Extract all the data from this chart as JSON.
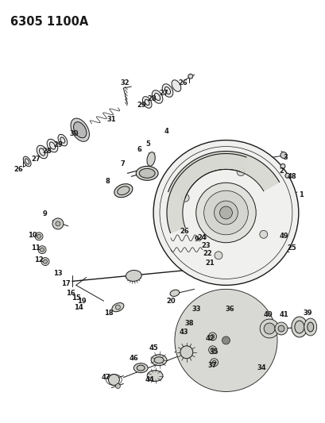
{
  "title": "6305 1100A",
  "bg_color": "#ffffff",
  "fig_width": 4.1,
  "fig_height": 5.33,
  "dpi": 100,
  "line_color": "#1a1a1a",
  "label_fontsize": 6.0,
  "title_fontsize": 10.5
}
